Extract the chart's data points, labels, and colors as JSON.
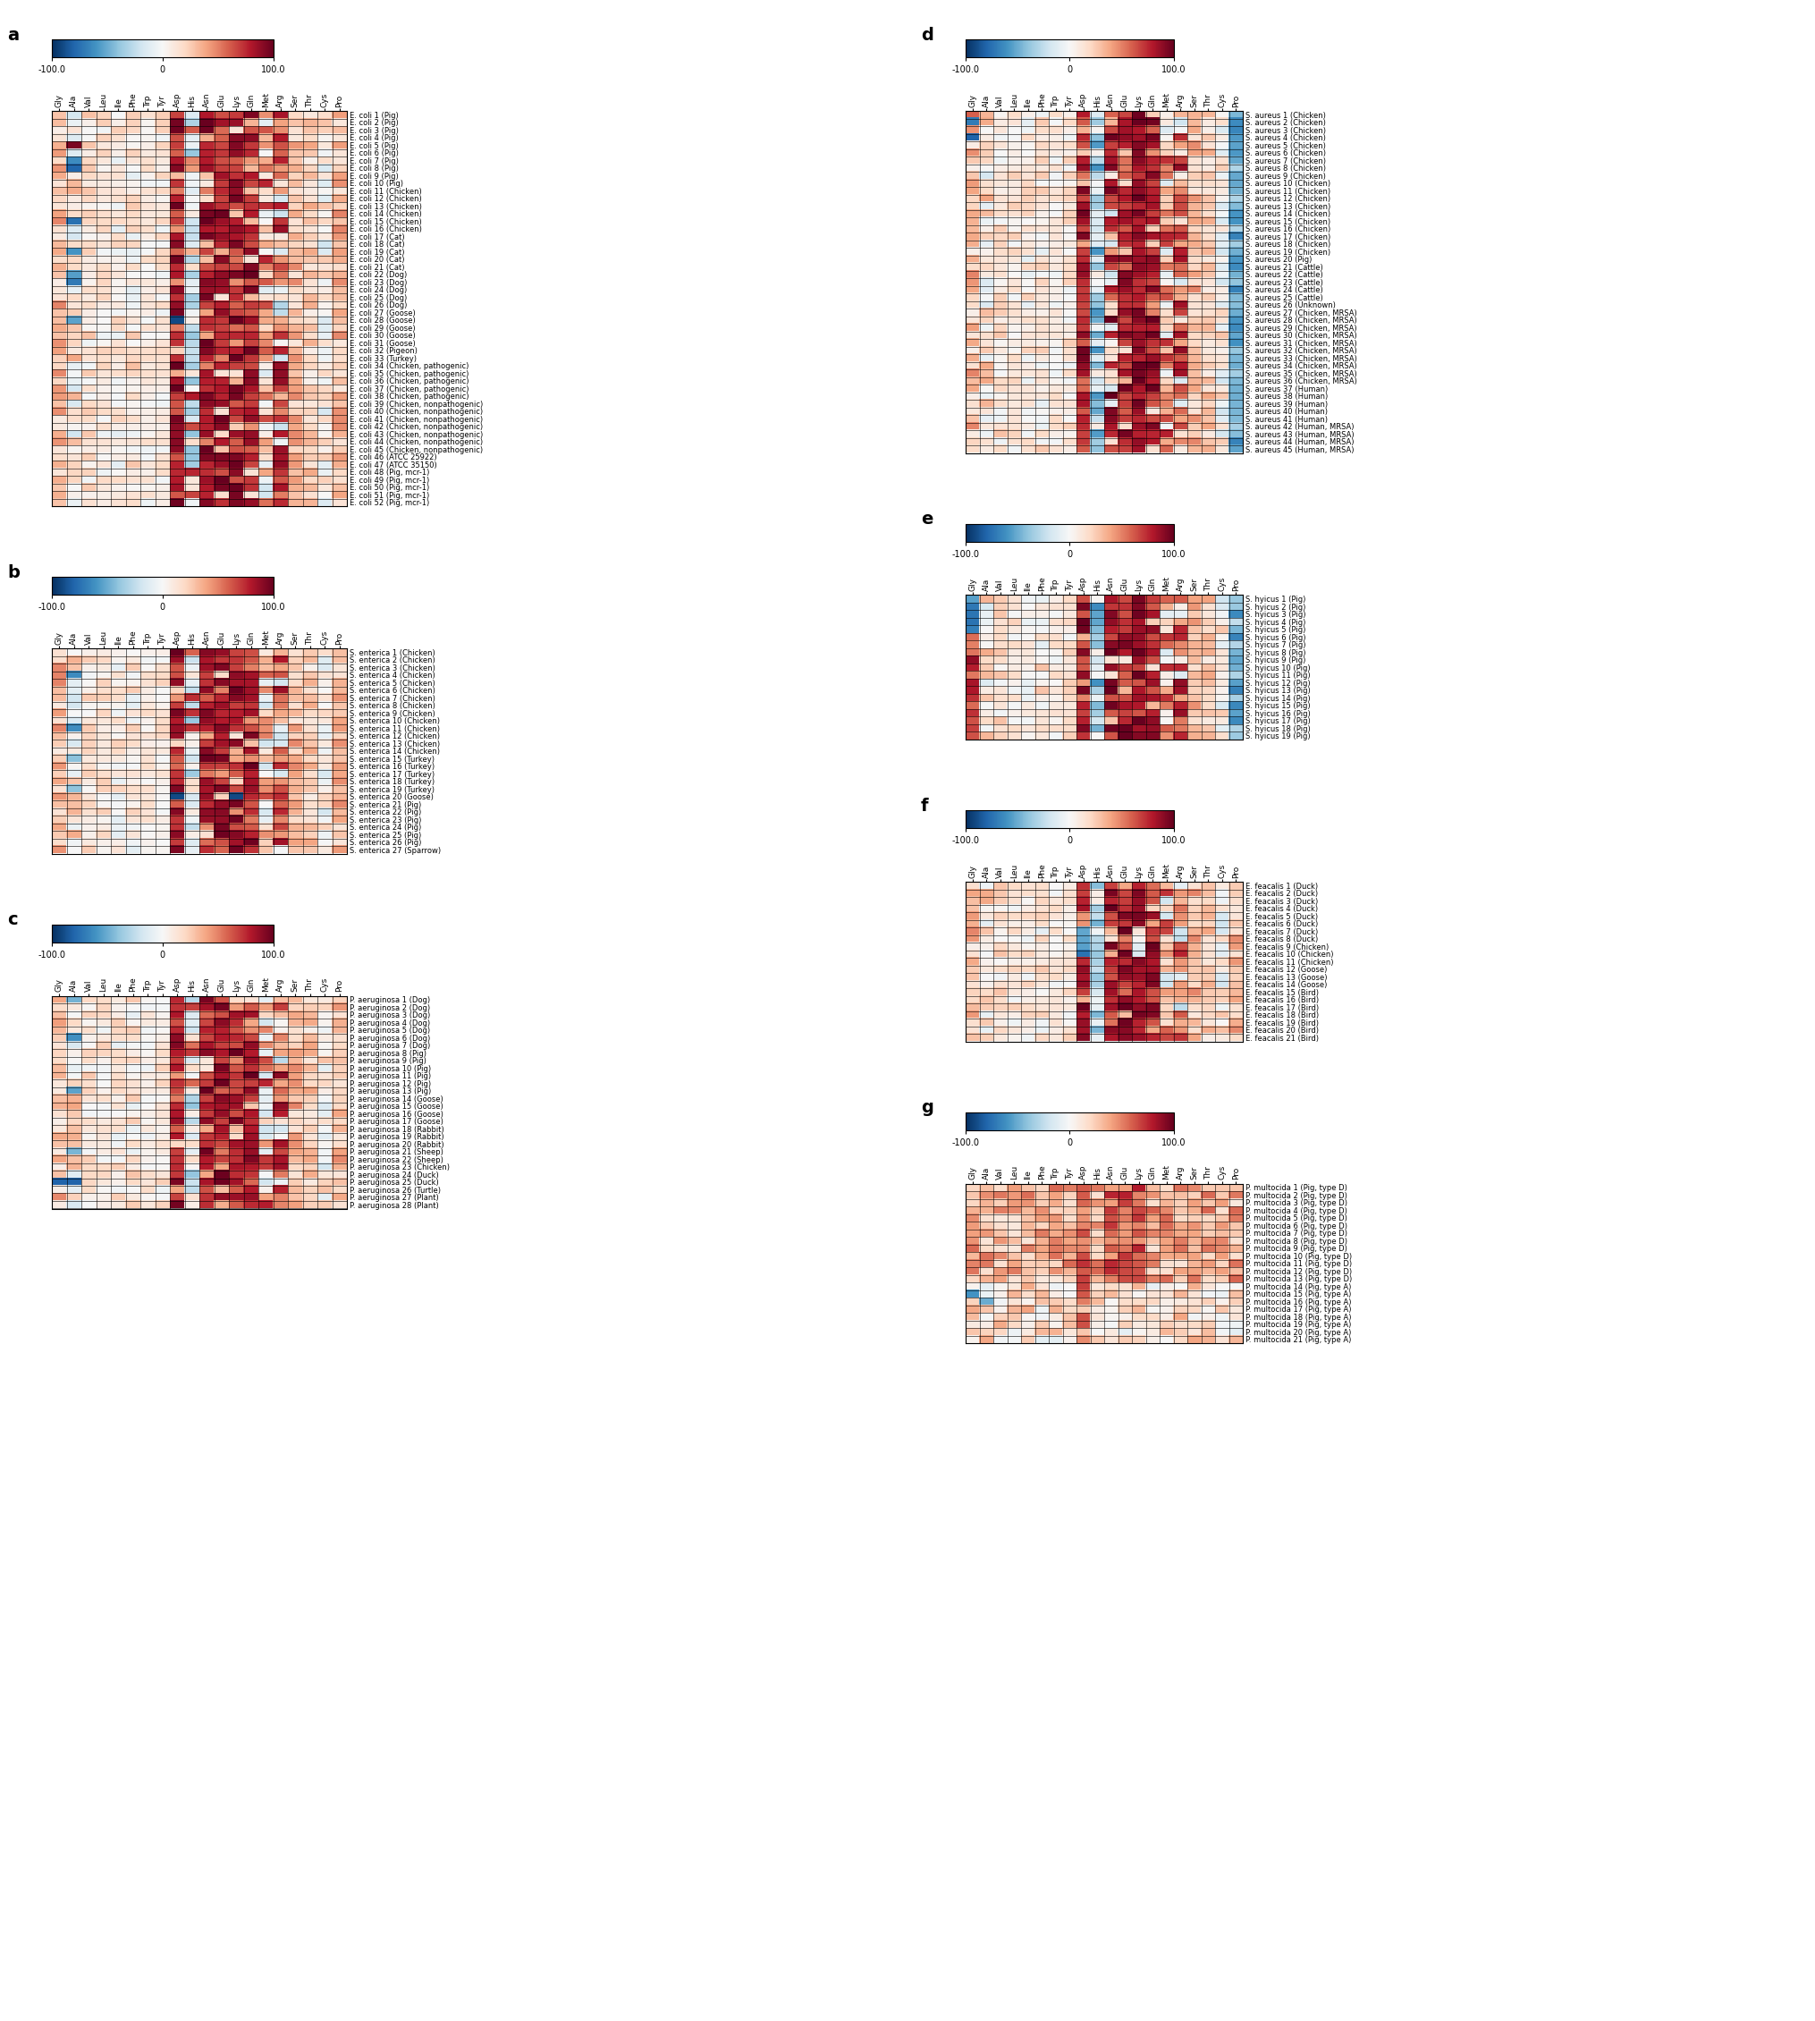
{
  "columns": [
    "Gly",
    "Ala",
    "Val",
    "Leu",
    "Ile",
    "Phe",
    "Trp",
    "Tyr",
    "Asp",
    "His",
    "Asn",
    "Glu",
    "Lys",
    "Gln",
    "Met",
    "Arg",
    "Ser",
    "Thr",
    "Cys",
    "Pro"
  ],
  "panel_a_rows": [
    "E. coli 1 (Pig)",
    "E. coli 2 (Pig)",
    "E. coli 3 (Pig)",
    "E. coli 4 (Pig)",
    "E. coli 5 (Pig)",
    "E. coli 6 (Pig)",
    "E. coli 7 (Pig)",
    "E. coli 8 (Pig)",
    "E. coli 9 (Pig)",
    "E. coli 10 (Pig)",
    "E. coli 11 (Chicken)",
    "E. coli 12 (Chicken)",
    "E. coli 13 (Chicken)",
    "E. coli 14 (Chicken)",
    "E. coli 15 (Chicken)",
    "E. coli 16 (Chicken)",
    "E. coli 17 (Cat)",
    "E. coli 18 (Cat)",
    "E. coli 19 (Cat)",
    "E. coli 20 (Cat)",
    "E. coli 21 (Cat)",
    "E. coli 22 (Dog)",
    "E. coli 23 (Dog)",
    "E. coli 24 (Dog)",
    "E. coli 25 (Dog)",
    "E. coli 26 (Dog)",
    "E. coli 27 (Goose)",
    "E. coli 28 (Goose)",
    "E. coli 29 (Goose)",
    "E. coli 30 (Goose)",
    "E. coli 31 (Goose)",
    "E. coli 32 (Pigeon)",
    "E. coli 33 (Turkey)",
    "E. coli 34 (Chicken, pathogenic)",
    "E. coli 35 (Chicken, pathogenic)",
    "E. coli 36 (Chicken, pathogenic)",
    "E. coli 37 (Chicken, pathogenic)",
    "E. coli 38 (Chicken, pathogenic)",
    "E. coli 39 (Chicken, nonpathogenic)",
    "E. coli 40 (Chicken, nonpathogenic)",
    "E. coli 41 (Chicken, nonpathogenic)",
    "E. coli 42 (Chicken, nonpathogenic)",
    "E. coli 43 (Chicken, nonpathogenic)",
    "E. coli 44 (Chicken, nonpathogenic)",
    "E. coli 45 (Chicken, nonpathogenic)",
    "E. coli 46 (ATCC 25922)",
    "E. coli 47 (ATCC 35150)",
    "E. coli 48 (Pig, mcr-1)",
    "E. coli 49 (Pig, mcr-1)",
    "E. coli 50 (Pig, mcr-1)",
    "E. coli 51 (Pig, mcr-1)",
    "E. coli 52 (Pig, mcr-1)"
  ],
  "panel_b_rows": [
    "S. enterica 1 (Chicken)",
    "S. enterica 2 (Chicken)",
    "S. enterica 3 (Chicken)",
    "S. enterica 4 (Chicken)",
    "S. enterica 5 (Chicken)",
    "S. enterica 6 (Chicken)",
    "S. enterica 7 (Chicken)",
    "S. enterica 8 (Chicken)",
    "S. enterica 9 (Chicken)",
    "S. enterica 10 (Chicken)",
    "S. enterica 11 (Chicken)",
    "S. enterica 12 (Chicken)",
    "S. enterica 13 (Chicken)",
    "S. enterica 14 (Chicken)",
    "S. enterica 15 (Turkey)",
    "S. enterica 16 (Turkey)",
    "S. enterica 17 (Turkey)",
    "S. enterica 18 (Turkey)",
    "S. enterica 19 (Turkey)",
    "S. enterica 20 (Goose)",
    "S. enterica 21 (Pig)",
    "S. enterica 22 (Pig)",
    "S. enterica 23 (Pig)",
    "S. enterica 24 (Pig)",
    "S. enterica 25 (Pig)",
    "S. enterica 26 (Pig)",
    "S. enterica 27 (Sparrow)"
  ],
  "panel_c_rows": [
    "P. aeruginosa 1 (Dog)",
    "P. aeruginosa 2 (Dog)",
    "P. aeruginosa 3 (Dog)",
    "P. aeruginosa 4 (Dog)",
    "P. aeruginosa 5 (Dog)",
    "P. aeruginosa 6 (Dog)",
    "P. aeruginosa 7 (Dog)",
    "P. aeruginosa 8 (Pig)",
    "P. aeruginosa 9 (Pig)",
    "P. aeruginosa 10 (Pig)",
    "P. aeruginosa 11 (Pig)",
    "P. aeruginosa 12 (Pig)",
    "P. aeruginosa 13 (Pig)",
    "P. aeruginosa 14 (Goose)",
    "P. aeruginosa 15 (Goose)",
    "P. aeruginosa 16 (Goose)",
    "P. aeruginosa 17 (Goose)",
    "P. aeruginosa 18 (Rabbit)",
    "P. aeruginosa 19 (Rabbit)",
    "P. aeruginosa 20 (Rabbit)",
    "P. aeruginosa 21 (Sheep)",
    "P. aeruginosa 22 (Sheep)",
    "P. aeruginosa 23 (Chicken)",
    "P. aeruginosa 24 (Duck)",
    "P. aeruginosa 25 (Duck)",
    "P. aeruginosa 26 (Turtle)",
    "P. aeruginosa 27 (Plant)",
    "P. aeruginosa 28 (Plant)"
  ],
  "panel_d_rows": [
    "S. aureus 1 (Chicken)",
    "S. aureus 2 (Chicken)",
    "S. aureus 3 (Chicken)",
    "S. aureus 4 (Chicken)",
    "S. aureus 5 (Chicken)",
    "S. aureus 6 (Chicken)",
    "S. aureus 7 (Chicken)",
    "S. aureus 8 (Chicken)",
    "S. aureus 9 (Chicken)",
    "S. aureus 10 (Chicken)",
    "S. aureus 11 (Chicken)",
    "S. aureus 12 (Chicken)",
    "S. aureus 13 (Chicken)",
    "S. aureus 14 (Chicken)",
    "S. aureus 15 (Chicken)",
    "S. aureus 16 (Chicken)",
    "S. aureus 17 (Chicken)",
    "S. aureus 18 (Chicken)",
    "S. aureus 19 (Chicken)",
    "S. aureus 20 (Pig)",
    "S. aureus 21 (Cattle)",
    "S. aureus 22 (Cattle)",
    "S. aureus 23 (Cattle)",
    "S. aureus 24 (Cattle)",
    "S. aureus 25 (Cattle)",
    "S. aureus 26 (Unknown)",
    "S. aureus 27 (Chicken, MRSA)",
    "S. aureus 28 (Chicken, MRSA)",
    "S. aureus 29 (Chicken, MRSA)",
    "S. aureus 30 (Chicken, MRSA)",
    "S. aureus 31 (Chicken, MRSA)",
    "S. aureus 32 (Chicken, MRSA)",
    "S. aureus 33 (Chicken, MRSA)",
    "S. aureus 34 (Chicken, MRSA)",
    "S. aureus 35 (Chicken, MRSA)",
    "S. aureus 36 (Chicken, MRSA)",
    "S. aureus 37 (Human)",
    "S. aureus 38 (Human)",
    "S. aureus 39 (Human)",
    "S. aureus 40 (Human)",
    "S. aureus 41 (Human)",
    "S. aureus 42 (Human, MRSA)",
    "S. aureus 43 (Human, MRSA)",
    "S. aureus 44 (Human, MRSA)",
    "S. aureus 45 (Human, MRSA)"
  ],
  "panel_e_rows": [
    "S. hyicus 1 (Pig)",
    "S. hyicus 2 (Pig)",
    "S. hyicus 3 (Pig)",
    "S. hyicus 4 (Pig)",
    "S. hyicus 5 (Pig)",
    "S. hyicus 6 (Pig)",
    "S. hyicus 7 (Pig)",
    "S. hyicus 8 (Pig)",
    "S. hyicus 9 (Pig)",
    "S. hyicus 10 (Pig)",
    "S. hyicus 11 (Pig)",
    "S. hyicus 12 (Pig)",
    "S. hyicus 13 (Pig)",
    "S. hyicus 14 (Pig)",
    "S. hyicus 15 (Pig)",
    "S. hyicus 16 (Pig)",
    "S. hyicus 17 (Pig)",
    "S. hyicus 18 (Pig)",
    "S. hyicus 19 (Pig)"
  ],
  "panel_f_rows": [
    "E. feacalis 1 (Duck)",
    "E. feacalis 2 (Duck)",
    "E. feacalis 3 (Duck)",
    "E. feacalis 4 (Duck)",
    "E. feacalis 5 (Duck)",
    "E. feacalis 6 (Duck)",
    "E. feacalis 7 (Duck)",
    "E. feacalis 8 (Duck)",
    "E. feacalis 9 (Chicken)",
    "E. feacalis 10 (Chicken)",
    "E. feacalis 11 (Chicken)",
    "E. feacalis 12 (Goose)",
    "E. feacalis 13 (Goose)",
    "E. feacalis 14 (Goose)",
    "E. feacalis 15 (Bird)",
    "E. feacalis 16 (Bird)",
    "E. feacalis 17 (Bird)",
    "E. feacalis 18 (Bird)",
    "E. feacalis 19 (Bird)",
    "E. feacalis 20 (Bird)",
    "E. feacalis 21 (Bird)"
  ],
  "panel_g_rows": [
    "P. multocida 1 (Pig, type D)",
    "P. multocida 2 (Pig, type D)",
    "P. multocida 3 (Pig, type D)",
    "P. multocida 4 (Pig, type D)",
    "P. multocida 5 (Pig, type D)",
    "P. multocida 6 (Pig, type D)",
    "P. multocida 7 (Pig, type D)",
    "P. multocida 8 (Pig, type D)",
    "P. multocida 9 (Pig, type D)",
    "P. multocida 10 (Pig, type D)",
    "P. multocida 11 (Pig, type D)",
    "P. multocida 12 (Pig, type D)",
    "P. multocida 13 (Pig, type D)",
    "P. multocida 14 (Pig, type A)",
    "P. multocida 15 (Pig, type A)",
    "P. multocida 16 (Pig, type A)",
    "P. multocida 17 (Pig, type A)",
    "P. multocida 18 (Pig, type A)",
    "P. multocida 19 (Pig, type A)",
    "P. multocida 20 (Pig, type A)",
    "P. multocida 21 (Pig, type A)"
  ],
  "vmin": -100,
  "vmax": 100,
  "panel_label_fontsize": 14,
  "tick_fontsize": 7,
  "row_label_fontsize": 6,
  "col_label_fontsize": 6.5
}
